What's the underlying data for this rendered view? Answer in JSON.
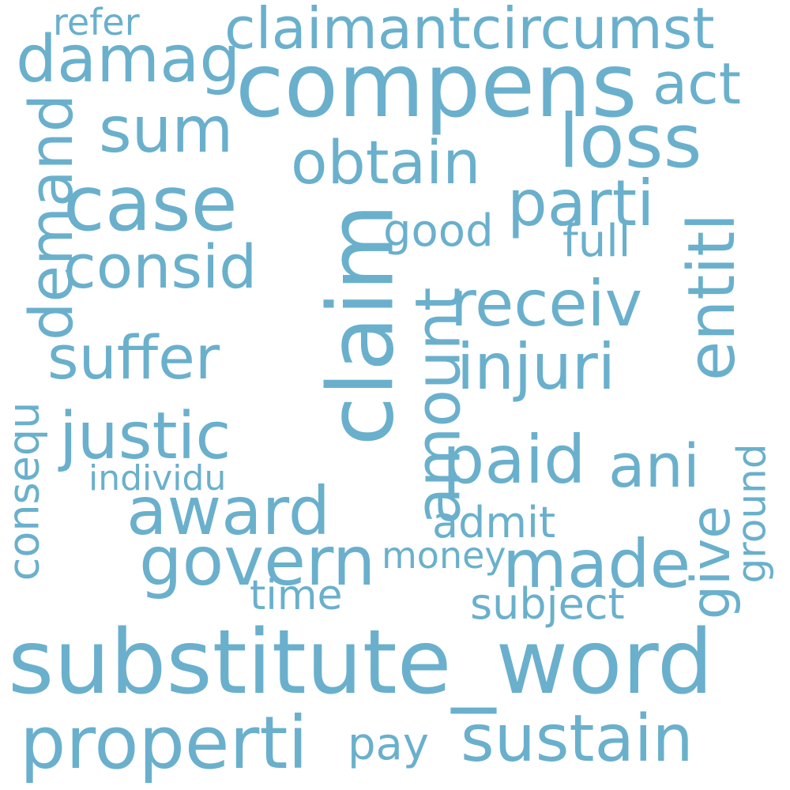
{
  "color": "#6ab0cc",
  "words": {
    "refer": "refer",
    "claimantcircumst": "claimantcircumst",
    "compens": "compens",
    "damag": "damag",
    "act": "act",
    "sum": "sum",
    "loss": "loss",
    "obtain": "obtain",
    "case": "case",
    "parti": "parti",
    "demand": "demand",
    "good": "good",
    "full": "full",
    "claim": "claim",
    "consid": "consid",
    "entitl": "entitl",
    "receiv": "receiv",
    "suffer": "suffer",
    "amount": "amount",
    "injuri": "injuri",
    "consequ": "consequ",
    "justic": "justic",
    "paid": "paid",
    "ani": "ani",
    "individu": "individu",
    "ground": "ground",
    "award": "award",
    "give": "give",
    "admit": "admit",
    "govern": "govern",
    "money": "money",
    "made": "made",
    "time": "time",
    "subject": "subject",
    "substitute_word": "substitute_word",
    "properti": "properti",
    "pay": "pay",
    "sustain": "sustain"
  }
}
